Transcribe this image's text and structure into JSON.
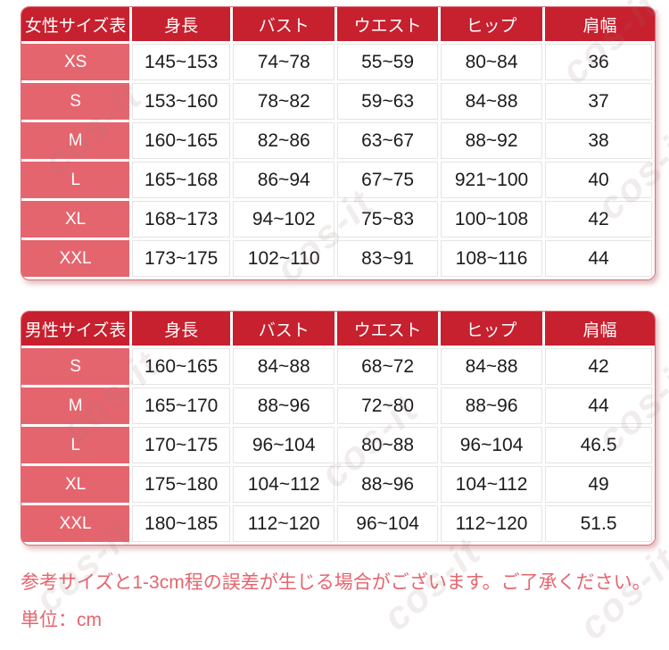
{
  "watermark": "cos-it",
  "colors": {
    "header_bg": "#c7202e",
    "label_bg": "#e5656e",
    "cell_hairline": "#e4e4e4",
    "table_border": "#db6d75",
    "note_text": "#e5656e"
  },
  "tables": [
    {
      "title": "女性サイズ表",
      "columns": [
        "身長",
        "バスト",
        "ウエスト",
        "ヒップ",
        "肩幅"
      ],
      "rows": [
        {
          "size": "XS",
          "values": [
            "145~153",
            "74~78",
            "55~59",
            "80~84",
            "36"
          ]
        },
        {
          "size": "S",
          "values": [
            "153~160",
            "78~82",
            "59~63",
            "84~88",
            "37"
          ]
        },
        {
          "size": "M",
          "values": [
            "160~165",
            "82~86",
            "63~67",
            "88~92",
            "38"
          ]
        },
        {
          "size": "L",
          "values": [
            "165~168",
            "86~94",
            "67~75",
            "921~100",
            "40"
          ]
        },
        {
          "size": "XL",
          "values": [
            "168~173",
            "94~102",
            "75~83",
            "100~108",
            "42"
          ]
        },
        {
          "size": "XXL",
          "values": [
            "173~175",
            "102~110",
            "83~91",
            "108~116",
            "44"
          ]
        }
      ]
    },
    {
      "title": "男性サイズ表",
      "columns": [
        "身長",
        "バスト",
        "ウエスト",
        "ヒップ",
        "肩幅"
      ],
      "rows": [
        {
          "size": "S",
          "values": [
            "160~165",
            "84~88",
            "68~72",
            "84~88",
            "42"
          ]
        },
        {
          "size": "M",
          "values": [
            "165~170",
            "88~96",
            "72~80",
            "88~96",
            "44"
          ]
        },
        {
          "size": "L",
          "values": [
            "170~175",
            "96~104",
            "80~88",
            "96~104",
            "46.5"
          ]
        },
        {
          "size": "XL",
          "values": [
            "175~180",
            "104~112",
            "88~96",
            "104~112",
            "49"
          ]
        },
        {
          "size": "XXL",
          "values": [
            "180~185",
            "112~120",
            "96~104",
            "112~120",
            "51.5"
          ]
        }
      ]
    }
  ],
  "notes": [
    "参考サイズと1-3cm程の誤差が生じる場合がございます。ご了承ください。",
    "単位：cm"
  ]
}
